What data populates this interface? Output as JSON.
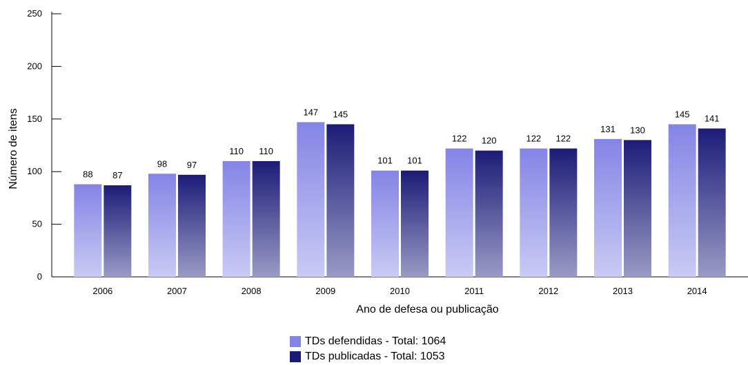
{
  "chart_data": {
    "type": "bar",
    "title": "",
    "xlabel": "Ano de defesa ou publicação",
    "ylabel": "Número de itens",
    "ylim": [
      0,
      250
    ],
    "yticks": [
      0,
      50,
      100,
      150,
      200,
      250
    ],
    "categories": [
      "2006",
      "2007",
      "2008",
      "2009",
      "2010",
      "2011",
      "2012",
      "2013",
      "2014"
    ],
    "series": [
      {
        "name": "TDs defendidas - Total: 1064",
        "values": [
          88,
          98,
          110,
          147,
          101,
          122,
          122,
          131,
          145
        ],
        "color_top": "#8484e6",
        "color_bottom": "#cacaf4"
      },
      {
        "name": "TDs publicadas - Total: 1053",
        "values": [
          87,
          97,
          110,
          145,
          101,
          120,
          122,
          130,
          141
        ],
        "color_top": "#1c1c78",
        "color_bottom": "#9a9ac6"
      }
    ],
    "grid": false,
    "legend_position": "bottom-center"
  },
  "legend": {
    "items": [
      {
        "label": "TDs defendidas - Total: 1064",
        "color": "#8484e6"
      },
      {
        "label": "TDs publicadas - Total: 1053",
        "color": "#1c1c78"
      }
    ]
  }
}
